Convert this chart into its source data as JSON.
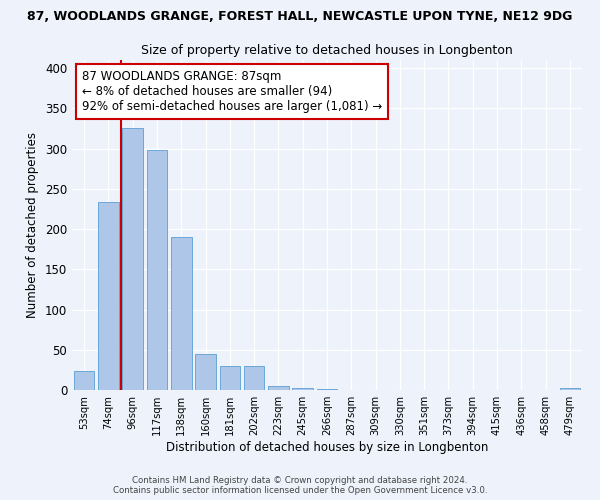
{
  "title": "87, WOODLANDS GRANGE, FOREST HALL, NEWCASTLE UPON TYNE, NE12 9DG",
  "subtitle": "Size of property relative to detached houses in Longbenton",
  "xlabel": "Distribution of detached houses by size in Longbenton",
  "ylabel": "Number of detached properties",
  "bar_labels": [
    "53sqm",
    "74sqm",
    "96sqm",
    "117sqm",
    "138sqm",
    "160sqm",
    "181sqm",
    "202sqm",
    "223sqm",
    "245sqm",
    "266sqm",
    "287sqm",
    "309sqm",
    "330sqm",
    "351sqm",
    "373sqm",
    "394sqm",
    "415sqm",
    "436sqm",
    "458sqm",
    "479sqm"
  ],
  "bar_values": [
    23,
    234,
    325,
    298,
    190,
    45,
    30,
    30,
    5,
    2,
    1,
    0,
    0,
    0,
    0,
    0,
    0,
    0,
    0,
    0,
    2
  ],
  "bar_color": "#aec6e8",
  "bar_edge_color": "#5a9fd4",
  "vline_x": 1.5,
  "vline_color": "#cc0000",
  "annotation_text": "87 WOODLANDS GRANGE: 87sqm\n← 8% of detached houses are smaller (94)\n92% of semi-detached houses are larger (1,081) →",
  "annotation_box_color": "#ffffff",
  "annotation_box_edge": "#cc0000",
  "ylim": [
    0,
    410
  ],
  "yticks": [
    0,
    50,
    100,
    150,
    200,
    250,
    300,
    350,
    400
  ],
  "footer_line1": "Contains HM Land Registry data © Crown copyright and database right 2024.",
  "footer_line2": "Contains public sector information licensed under the Open Government Licence v3.0.",
  "background_color": "#edf2fb",
  "plot_bg_color": "#edf2fb",
  "grid_color": "#ffffff"
}
